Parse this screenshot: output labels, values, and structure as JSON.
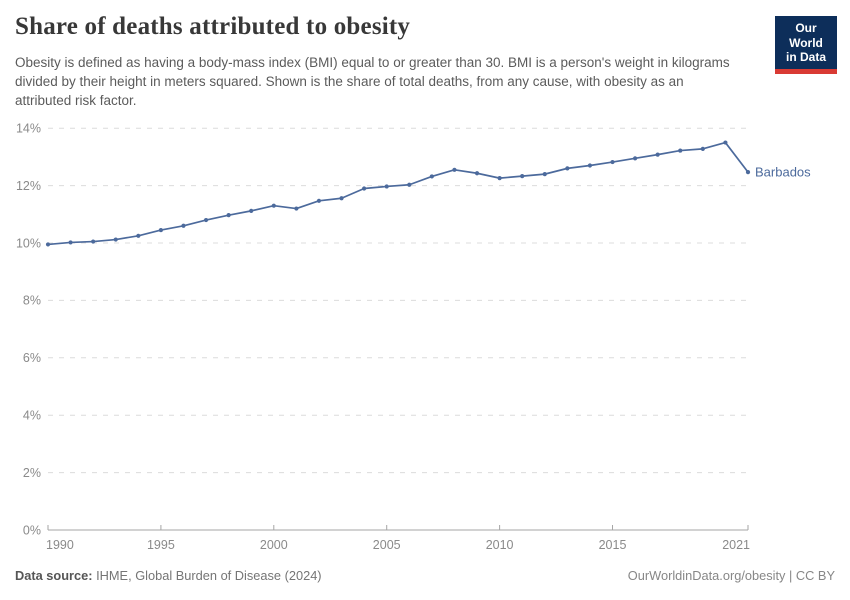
{
  "header": {
    "title": "Share of deaths attributed to obesity",
    "subtitle": "Obesity is defined as having a body-mass index (BMI) equal to or greater than 30. BMI is a person's weight in kilograms divided by their height in meters squared. Shown is the share of total deaths, from any cause, with obesity as an attributed risk factor.",
    "logo": {
      "line1": "Our World",
      "line2": "in Data",
      "bg_color": "#0d2e5a",
      "accent_color": "#d93a34",
      "text_color": "#ffffff"
    }
  },
  "footer": {
    "source_label": "Data source:",
    "source_text": "IHME, Global Burden of Disease (2024)",
    "credit": "OurWorldinData.org/obesity | CC BY"
  },
  "chart_data": {
    "type": "line",
    "title": "Share of deaths attributed to obesity",
    "xlabel": "",
    "ylabel": "",
    "x": [
      1990,
      1991,
      1992,
      1993,
      1994,
      1995,
      1996,
      1997,
      1998,
      1999,
      2000,
      2001,
      2002,
      2003,
      2004,
      2005,
      2006,
      2007,
      2008,
      2009,
      2010,
      2011,
      2012,
      2013,
      2014,
      2015,
      2016,
      2017,
      2018,
      2019,
      2020,
      2021
    ],
    "series": [
      {
        "name": "Barbados",
        "color": "#4c6a9c",
        "values": [
          9.95,
          10.02,
          10.05,
          10.12,
          10.25,
          10.45,
          10.6,
          10.8,
          10.97,
          11.12,
          11.3,
          11.2,
          11.47,
          11.56,
          11.9,
          11.97,
          12.03,
          12.32,
          12.55,
          12.43,
          12.26,
          12.33,
          12.4,
          12.6,
          12.7,
          12.82,
          12.95,
          13.08,
          13.22,
          13.28,
          13.5,
          12.47
        ]
      }
    ],
    "ylim": [
      0,
      14
    ],
    "yticks": [
      0,
      2,
      4,
      6,
      8,
      10,
      12,
      14
    ],
    "ytick_suffix": "%",
    "xticks": [
      1990,
      1995,
      2000,
      2005,
      2010,
      2015,
      2021
    ],
    "grid": "horizontal-dashed",
    "legend": "end-of-line-label",
    "grid_color": "#dcdcdc",
    "axis_color": "#a5a5a5",
    "tick_label_color": "#8a8a8a"
  }
}
